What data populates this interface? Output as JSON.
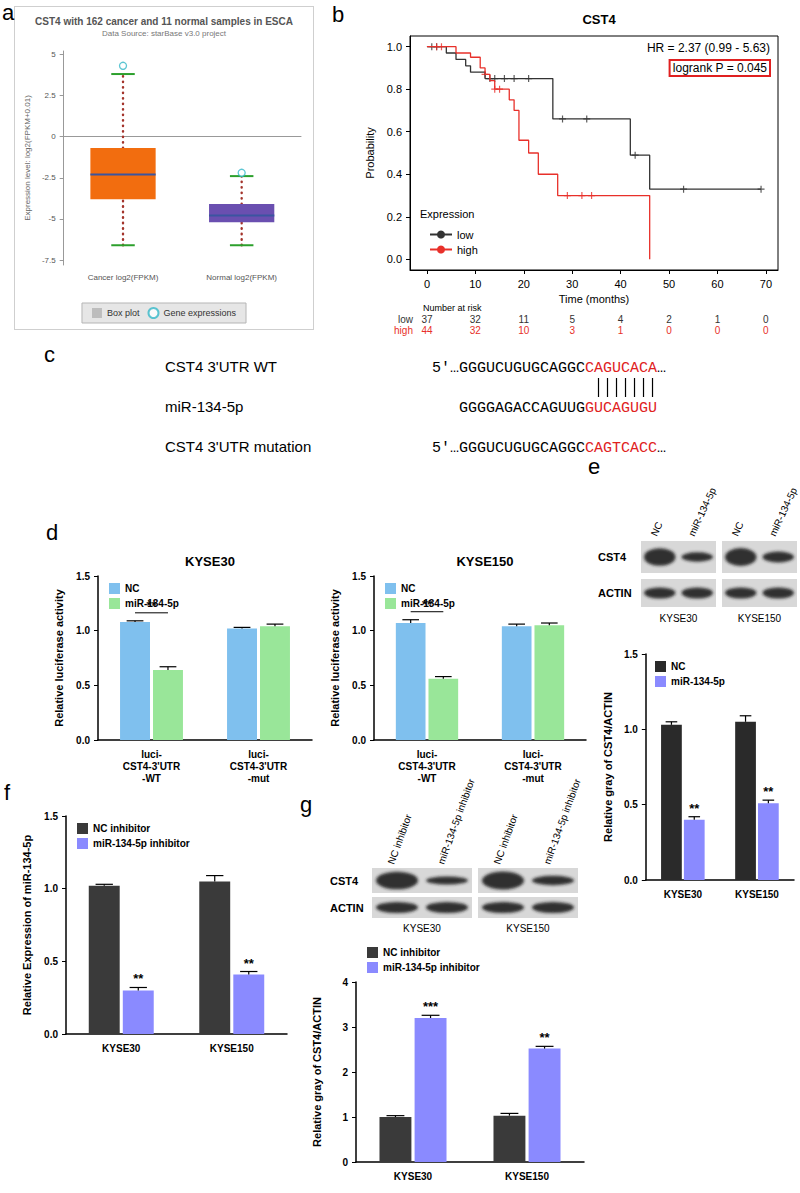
{
  "chart_data": [
    {
      "panel": "a",
      "type": "boxplot",
      "title": "CST4 with 162 cancer and 11 normal samples in ESCA",
      "subtitle": "Data Source: starBase v3.0 project",
      "ylabel": "Expression level: log2(FPKM+0.01)",
      "categories": [
        "Cancer log2(FPKM)",
        "Normal log2(FPKM)"
      ],
      "values": [
        [
          -6.6,
          -3.8,
          -2.3,
          -0.7,
          3.8
        ],
        [
          -6.6,
          -5.2,
          -4.8,
          -4.1,
          -2.4
        ]
      ],
      "outliers": [
        [
          4.3
        ],
        [
          -2.2
        ]
      ],
      "colors": [
        "#f26d0f",
        "#6a4fb0"
      ],
      "series": [
        {
          "name": "Box plot",
          "color": "#bdbdbd"
        },
        {
          "name": "Gene expressions",
          "color": "#35b8c8"
        }
      ],
      "ylim": [
        -7.8,
        5.2
      ],
      "yticks": [
        -7.5,
        -5,
        -2.5,
        0,
        2.5,
        5
      ],
      "legend": "bottom"
    },
    {
      "panel": "b",
      "type": "line",
      "title": "CST4",
      "xlabel": "Time (months)",
      "ylabel": "Probability",
      "xlim": [
        -3.5,
        72.5
      ],
      "xticks": [
        0,
        10,
        20,
        30,
        40,
        50,
        60,
        70
      ],
      "ylim": [
        -0.05,
        1.05
      ],
      "yticks": [
        {
          "value": 0,
          "label": "0.0"
        },
        0.2,
        0.4,
        0.6,
        0.8,
        {
          "value": 1,
          "label": "1.0"
        }
      ],
      "line_style": "step",
      "marker": "plus",
      "legend": "lower left",
      "legend_title": "Expression",
      "annotations": [
        {
          "text": "HR = 2.37 (0.99 - 5.63)"
        },
        {
          "text": "logrank P = 0.045"
        }
      ],
      "series": [
        {
          "name": "low",
          "color": "#333333",
          "x": [
            0,
            4,
            6,
            8,
            9,
            12,
            26,
            42,
            46,
            69
          ],
          "values": [
            1,
            0.97,
            0.94,
            0.91,
            0.88,
            0.85,
            0.66,
            0.49,
            0.33,
            0.33
          ],
          "censored": {
            "x": [
              1,
              2,
              13,
              14,
              16,
              18,
              21,
              28,
              33,
              43,
              53,
              69
            ],
            "values": [
              1,
              1,
              0.85,
              0.85,
              0.85,
              0.85,
              0.85,
              0.66,
              0.66,
              0.49,
              0.33,
              0.33
            ]
          }
        },
        {
          "name": "high",
          "color": "#e8302a",
          "x": [
            0,
            6,
            9,
            11,
            12,
            13,
            14,
            17,
            18,
            19,
            21,
            23,
            27,
            46
          ],
          "values": [
            1,
            0.97,
            0.95,
            0.9,
            0.87,
            0.84,
            0.8,
            0.75,
            0.7,
            0.56,
            0.5,
            0.4,
            0.3,
            0
          ],
          "censored": {
            "x": [
              2,
              3,
              12,
              14,
              15,
              29,
              32,
              34
            ],
            "values": [
              1,
              1,
              0.87,
              0.8,
              0.8,
              0.3,
              0.3,
              0.3
            ]
          }
        }
      ],
      "risk_table": {
        "title": "Number at risk",
        "x": [
          0,
          10,
          20,
          30,
          40,
          50,
          60,
          70
        ],
        "rows": [
          {
            "name": "low",
            "values": [
              37,
              32,
              11,
              5,
              4,
              2,
              1,
              0
            ]
          },
          {
            "name": "high",
            "values": [
              44,
              32,
              10,
              3,
              1,
              0,
              0,
              0
            ]
          }
        ]
      }
    },
    {
      "panel": "d",
      "type": "bar",
      "title": "KYSE30",
      "ylabel": "Relative luciferase activity",
      "categories": [
        "luci-\nCST4-3'UTR\n-WT",
        "luci-\nCST4-3'UTR\n-mut"
      ],
      "series": [
        {
          "name": "NC",
          "color": "#7fc0ee",
          "values": [
            1.08,
            1.02
          ],
          "errors": [
            0.01,
            0.01
          ]
        },
        {
          "name": "miR-134-5p",
          "color": "#99e699",
          "values": [
            0.64,
            1.04
          ],
          "errors": [
            0.03,
            0.02
          ]
        }
      ],
      "ylim": [
        0,
        1.5
      ],
      "yticks": [
        {
          "value": 0,
          "label": "0.0"
        },
        0.5,
        {
          "value": 1,
          "label": "1.0"
        },
        1.5
      ],
      "legend": "upper left",
      "annotations": [
        {
          "text": "**",
          "category": "luci-\nCST4-3'UTR\n-WT"
        }
      ]
    },
    {
      "type": "bar",
      "title": "KYSE150",
      "ylabel": "Relative luciferase activity",
      "categories": [
        "luci-\nCST4-3'UTR\n-WT",
        "luci-\nCST4-3'UTR\n-mut"
      ],
      "series": [
        {
          "name": "NC",
          "color": "#7fc0ee",
          "values": [
            1.07,
            1.04
          ],
          "errors": [
            0.03,
            0.02
          ]
        },
        {
          "name": "miR-134-5p",
          "color": "#99e699",
          "values": [
            0.56,
            1.05
          ],
          "errors": [
            0.02,
            0.02
          ]
        }
      ],
      "ylim": [
        0,
        1.5
      ],
      "yticks": [
        {
          "value": 0,
          "label": "0.0"
        },
        0.5,
        {
          "value": 1,
          "label": "1.0"
        },
        1.5
      ],
      "legend": "upper left",
      "annotations": [
        {
          "text": "**",
          "category": "luci-\nCST4-3'UTR\n-WT"
        }
      ]
    },
    {
      "type": "bar",
      "ylabel": "Relative gray of CST4/ACTIN",
      "categories": [
        "KYSE30",
        "KYSE150"
      ],
      "series": [
        {
          "name": "NC",
          "color": "#2a2a2a",
          "values": [
            1.03,
            1.05
          ],
          "errors": [
            0.02,
            0.04
          ]
        },
        {
          "name": "miR-134-5p",
          "color": "#8a8aff",
          "values": [
            0.4,
            0.51
          ],
          "errors": [
            0.02,
            0.02
          ]
        }
      ],
      "ylim": [
        0,
        1.5
      ],
      "yticks": [
        {
          "value": 0,
          "label": "0.0"
        },
        0.5,
        {
          "value": 1,
          "label": "1.0"
        },
        1.5
      ],
      "legend": "upper left",
      "annotations": [
        {
          "text": "**",
          "category": "KYSE30",
          "series": "miR-134-5p"
        },
        {
          "text": "**",
          "category": "KYSE150",
          "series": "miR-134-5p"
        }
      ]
    },
    {
      "panel": "f",
      "type": "bar",
      "ylabel": "Relative Expression of miR-134-5p",
      "categories": [
        "KYSE30",
        "KYSE150"
      ],
      "series": [
        {
          "name": "NC inhibitor",
          "color": "#3a3a3a",
          "values": [
            1.02,
            1.05
          ],
          "errors": [
            0.01,
            0.04
          ]
        },
        {
          "name": "miR-134-5p inhibitor",
          "color": "#8a8aff",
          "values": [
            0.3,
            0.41
          ],
          "errors": [
            0.02,
            0.02
          ]
        }
      ],
      "ylim": [
        0,
        1.5
      ],
      "yticks": [
        {
          "value": 0,
          "label": "0.0"
        },
        0.5,
        {
          "value": 1,
          "label": "1.0"
        },
        1.5
      ],
      "legend": "upper left",
      "annotations": [
        {
          "text": "**",
          "category": "KYSE30",
          "series": "miR-134-5p inhibitor"
        },
        {
          "text": "**",
          "category": "KYSE150",
          "series": "miR-134-5p inhibitor"
        }
      ]
    },
    {
      "type": "bar",
      "ylabel": "Relative gray of CST4/ACTIN",
      "categories": [
        "KYSE30",
        "KYSE150"
      ],
      "series": [
        {
          "name": "NC inhibitor",
          "color": "#3a3a3a",
          "values": [
            1,
            1.03
          ],
          "errors": [
            0.03,
            0.05
          ]
        },
        {
          "name": "miR-134-5p inhibitor",
          "color": "#8a8aff",
          "values": [
            3.2,
            2.52
          ],
          "errors": [
            0.06,
            0.05
          ]
        }
      ],
      "ylim": [
        0,
        4
      ],
      "yticks": [
        0,
        1,
        2,
        3,
        4
      ],
      "legend": "upper left",
      "annotations": [
        {
          "text": "***",
          "category": "KYSE30",
          "series": "miR-134-5p inhibitor"
        },
        {
          "text": "**",
          "category": "KYSE150",
          "series": "miR-134-5p inhibitor"
        }
      ]
    }
  ],
  "diagram": {
    "panel": "c",
    "pairs": 7,
    "rows": [
      {
        "name": "CST4 3'UTR WT",
        "sequence": "5'…GGGUCUGUGCAGGC",
        "highlight": "CAGUCACA",
        "tail": "…"
      },
      {
        "name": "miR-134-5p",
        "sequence": "GGGGAGACCAGUUG",
        "highlight": "GUCAGUGU"
      },
      {
        "name": "CST4 3'UTR mutation",
        "sequence": "5'…GGGUCUGUGCAGGC",
        "highlight": "CAGTCACC",
        "tail": "…"
      }
    ]
  },
  "blots": [
    {
      "panel": "e",
      "rows": [
        "CST4",
        "ACTIN"
      ],
      "groups": [
        {
          "name": "KYSE30",
          "lanes": [
            "NC",
            "miR-134-5p"
          ]
        },
        {
          "name": "KYSE150",
          "lanes": [
            "NC",
            "miR-134-5p"
          ]
        }
      ]
    },
    {
      "panel": "g",
      "rows": [
        "CST4",
        "ACTIN"
      ],
      "groups": [
        {
          "name": "KYSE30",
          "lanes": [
            "NC inhibitor",
            "miR-134-5p inhibitor"
          ]
        },
        {
          "name": "KYSE150",
          "lanes": [
            "NC inhibitor",
            "miR-134-5p inhibitor"
          ]
        }
      ]
    }
  ]
}
